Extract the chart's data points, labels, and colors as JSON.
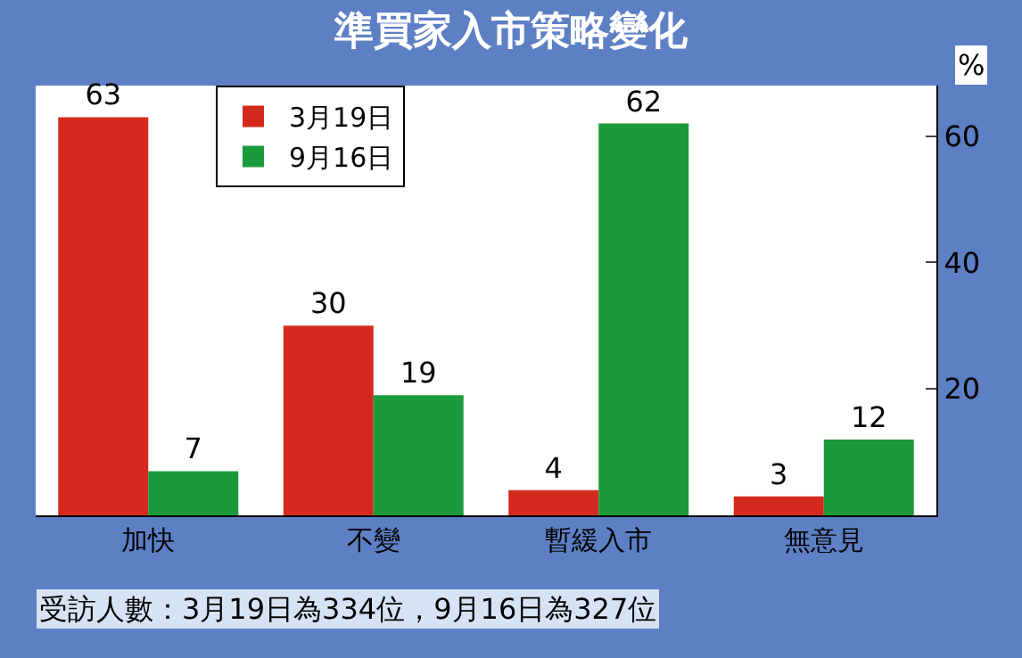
{
  "chart_data": {
    "type": "bar",
    "title": "準買家入市策略變化",
    "ylabel": "%",
    "categories": [
      "加快",
      "不變",
      "暫緩入市",
      "無意見"
    ],
    "series": [
      {
        "name": "3月19日",
        "color": "#d42a1e",
        "values": [
          63,
          30,
          4,
          3
        ]
      },
      {
        "name": "9月16日",
        "color": "#1b9a3c",
        "values": [
          7,
          19,
          62,
          12
        ]
      }
    ],
    "ylim": [
      0,
      68
    ],
    "yticks": [
      20,
      40,
      60
    ],
    "legend": "top left",
    "data_labels": true,
    "annotations": [
      "受訪人數：3月19日為334位，9月16日為327位"
    ]
  }
}
